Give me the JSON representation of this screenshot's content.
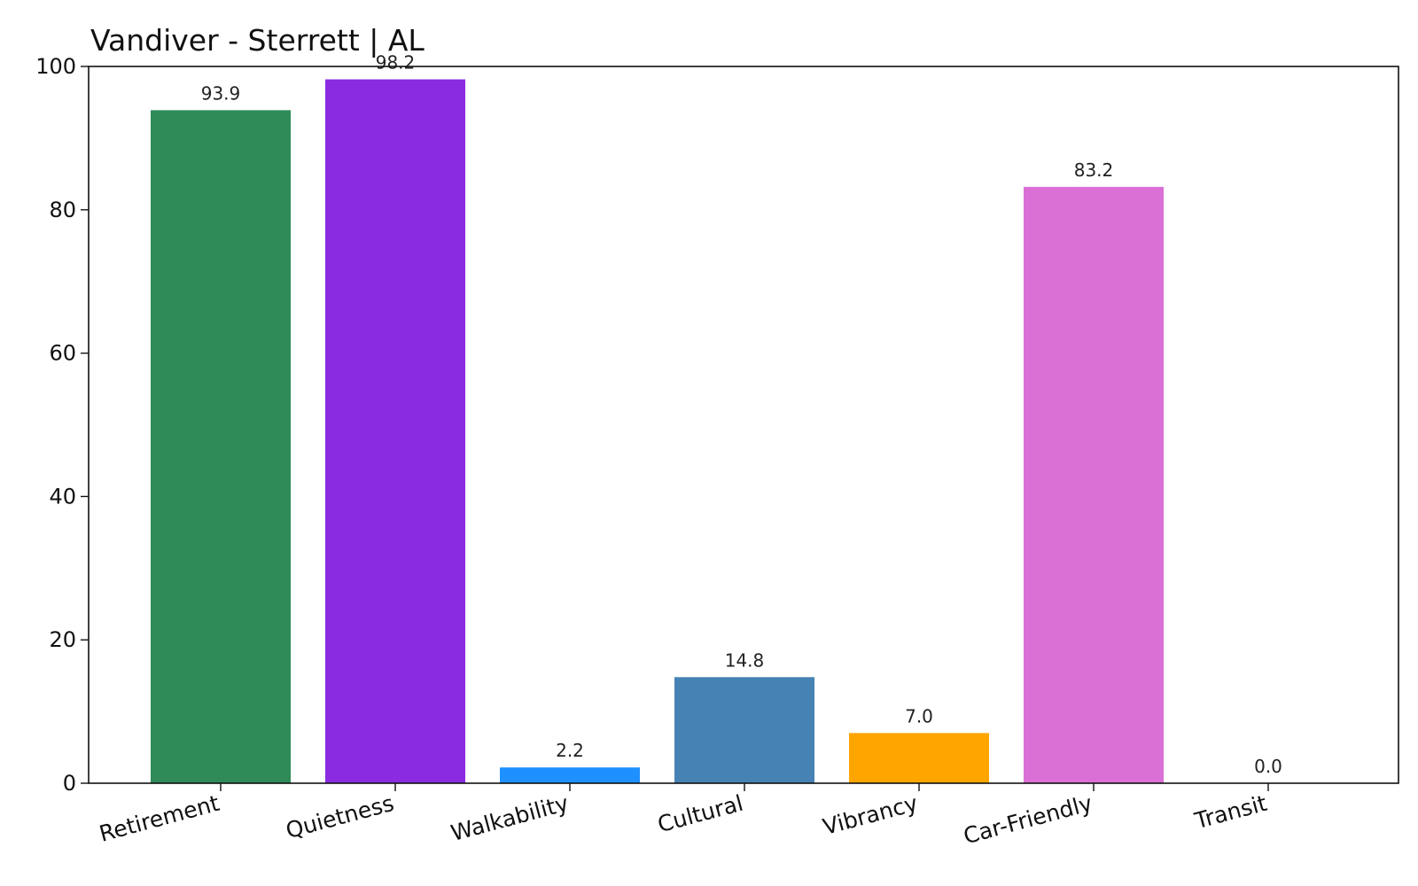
{
  "chart_data": {
    "type": "bar",
    "title": "Vandiver - Sterrett | AL",
    "xlabel": "",
    "ylabel": "",
    "ylim": [
      0,
      100
    ],
    "yticks": [
      0,
      20,
      40,
      60,
      80,
      100
    ],
    "grid": false,
    "categories": [
      "Retirement",
      "Quietness",
      "Walkability",
      "Cultural",
      "Vibrancy",
      "Car-Friendly",
      "Transit"
    ],
    "values": [
      93.9,
      98.2,
      2.2,
      14.8,
      7.0,
      83.2,
      0.0
    ],
    "value_labels": [
      "93.9",
      "98.2",
      "2.2",
      "14.8",
      "7.0",
      "83.2",
      "0.0"
    ],
    "colors": [
      "#2e8b57",
      "#8a2be2",
      "#1e90ff",
      "#4682b4",
      "#ffa500",
      "#da70d6",
      "#708090"
    ]
  }
}
